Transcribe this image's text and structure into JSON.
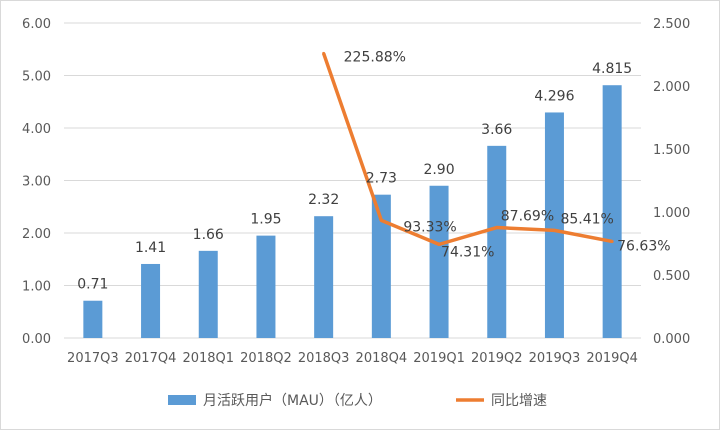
{
  "chart_data": {
    "type": "bar",
    "categories": [
      "2017Q3",
      "2017Q4",
      "2018Q1",
      "2018Q2",
      "2018Q3",
      "2018Q4",
      "2019Q1",
      "2019Q2",
      "2019Q3",
      "2019Q4"
    ],
    "series": [
      {
        "name": "月活跃用户（MAU）（亿人）",
        "type": "bar",
        "axis": "left",
        "color": "#5b9bd5",
        "values": [
          0.71,
          1.41,
          1.66,
          1.95,
          2.32,
          2.73,
          2.9,
          3.66,
          4.296,
          4.815
        ],
        "labels": [
          "0.71",
          "1.41",
          "1.66",
          "1.95",
          "2.32",
          "2.73",
          "2.90",
          "3.66",
          "4.296",
          "4.815"
        ]
      },
      {
        "name": "同比增速",
        "type": "line",
        "axis": "right",
        "color": "#ed7d31",
        "values": [
          null,
          null,
          null,
          null,
          2.2588,
          0.9333,
          0.7431,
          0.8769,
          0.8541,
          0.7663
        ],
        "labels": [
          null,
          null,
          null,
          null,
          "225.88%",
          "93.33%",
          "74.31%",
          "87.69%",
          "85.41%",
          "76.63%"
        ]
      }
    ],
    "y_left": {
      "lim": [
        0,
        6
      ],
      "ticks": [
        "0.00",
        "1.00",
        "2.00",
        "3.00",
        "4.00",
        "5.00",
        "6.00"
      ]
    },
    "y_right": {
      "lim": [
        0,
        2.5
      ],
      "ticks": [
        "0.000",
        "0.500",
        "1.000",
        "1.500",
        "2.000",
        "2.500"
      ]
    },
    "grid": true,
    "legend_position": "bottom"
  }
}
